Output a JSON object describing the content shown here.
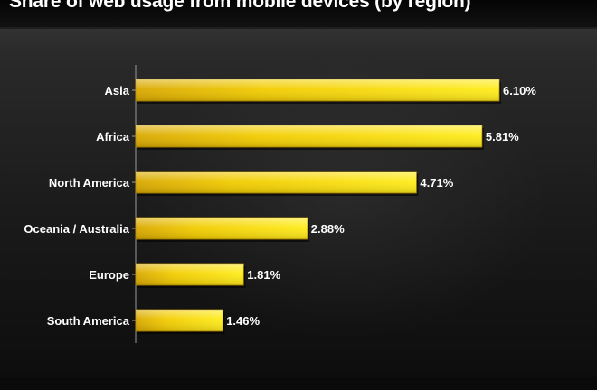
{
  "chart_data": {
    "type": "bar",
    "orientation": "horizontal",
    "title": "Share of web usage from mobile devices (by region)",
    "categories": [
      "Asia",
      "Africa",
      "North America",
      "Oceania / Australia",
      "Europe",
      "South America"
    ],
    "values": [
      6.1,
      5.81,
      4.71,
      2.88,
      1.81,
      1.46
    ],
    "value_labels": [
      "6.10%",
      "5.81%",
      "4.71%",
      "2.88%",
      "1.81%",
      "1.46%"
    ],
    "xlim": [
      0,
      6.1
    ],
    "grid": false,
    "bar_color": "#f5d400",
    "background_color": "#1c1c1c"
  }
}
